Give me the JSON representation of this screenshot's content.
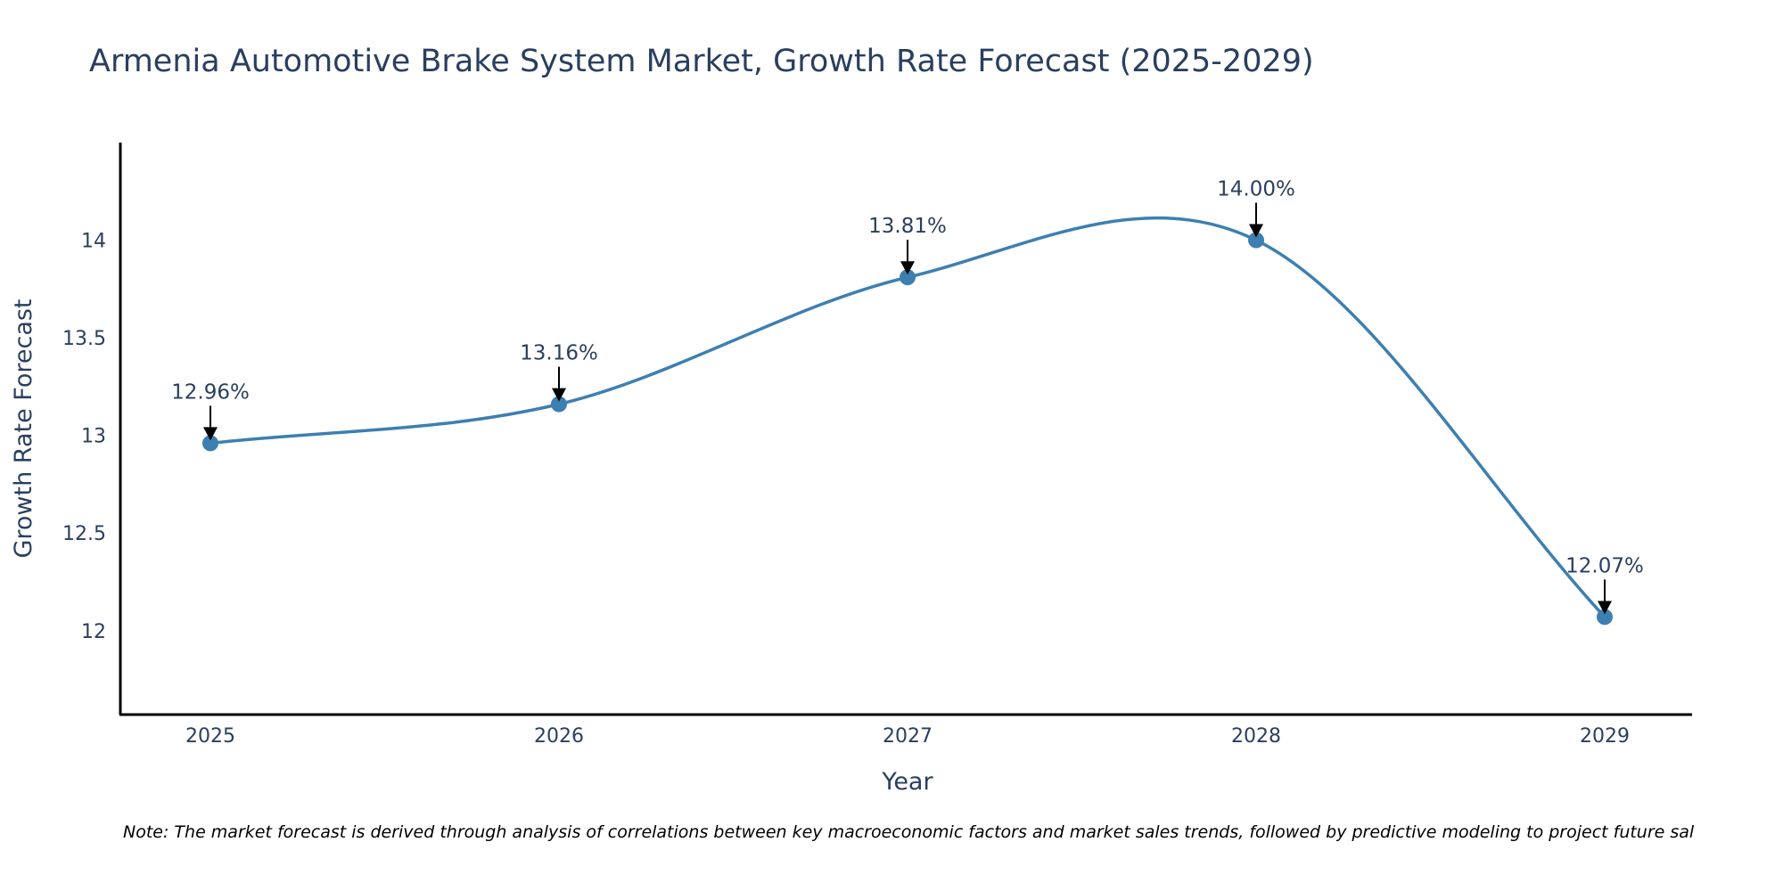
{
  "chart_data": {
    "type": "line",
    "title": "Armenia Automotive Brake System Market, Growth Rate Forecast (2025-2029)",
    "xlabel": "Year",
    "ylabel": "Growth Rate Forecast",
    "categories": [
      "2025",
      "2026",
      "2027",
      "2028",
      "2029"
    ],
    "series": [
      {
        "name": "Growth Rate Forecast",
        "values": [
          12.96,
          13.16,
          13.81,
          14.0,
          12.07
        ],
        "labels": [
          "12.96%",
          "13.16%",
          "13.81%",
          "14.00%",
          "12.07%"
        ]
      }
    ],
    "ylim": [
      11.57,
      14.5
    ],
    "yticks": [
      12,
      12.5,
      13,
      13.5,
      14
    ],
    "ytick_labels": [
      "12",
      "12.5",
      "13",
      "13.5",
      "14"
    ],
    "grid": false,
    "line_color": "#3d7fb0",
    "marker_color": "#3d7fb0",
    "note": "Note: The market forecast is derived through analysis of correlations between key macroeconomic factors and market sales trends, followed by predictive modeling to project future sal"
  }
}
